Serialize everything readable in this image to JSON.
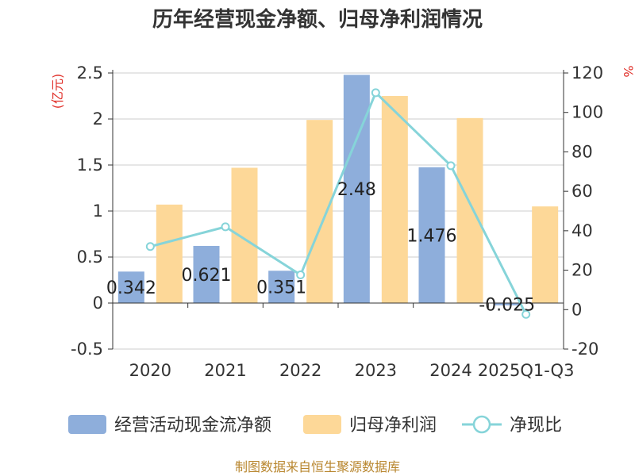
{
  "chart_data": {
    "type": "bar",
    "title": "历年经营现金净额、归母净利润情况",
    "categories": [
      "2020",
      "2021",
      "2022",
      "2023",
      "2024",
      "2025Q1-Q3"
    ],
    "series": [
      {
        "name": "经营活动现金流净额",
        "kind": "bar",
        "axis": "left",
        "color": "#8eaedb",
        "values": [
          0.342,
          0.621,
          0.351,
          2.48,
          1.476,
          -0.025
        ],
        "labels": [
          "0.342",
          "0.621",
          "0.351",
          "2.48",
          "1.476",
          "-0.025"
        ]
      },
      {
        "name": "归母净利润",
        "kind": "bar",
        "axis": "left",
        "color": "#fdd898",
        "values": [
          1.07,
          1.47,
          1.99,
          2.25,
          2.01,
          1.05
        ]
      },
      {
        "name": "净现比",
        "kind": "line",
        "axis": "right",
        "color": "#86d4d9",
        "values": [
          32,
          42,
          17.6,
          110,
          73,
          -2.4
        ]
      }
    ],
    "left_axis": {
      "unit": "(亿元)",
      "ylim": [
        -0.5,
        2.5
      ],
      "ticks": [
        -0.5,
        0,
        0.5,
        1,
        1.5,
        2,
        2.5
      ],
      "tick_labels": [
        "-0.5",
        "0",
        "0.5",
        "1",
        "1.5",
        "2",
        "2.5"
      ]
    },
    "right_axis": {
      "unit": "%",
      "ylim": [
        -20,
        120
      ],
      "ticks": [
        -20,
        0,
        20,
        40,
        60,
        80,
        100,
        120
      ],
      "tick_labels": [
        "-20",
        "0",
        "20",
        "40",
        "60",
        "80",
        "100",
        "120"
      ]
    },
    "grid": true,
    "legend_position": "bottom",
    "source": "制图数据来自恒生聚源数据库"
  }
}
